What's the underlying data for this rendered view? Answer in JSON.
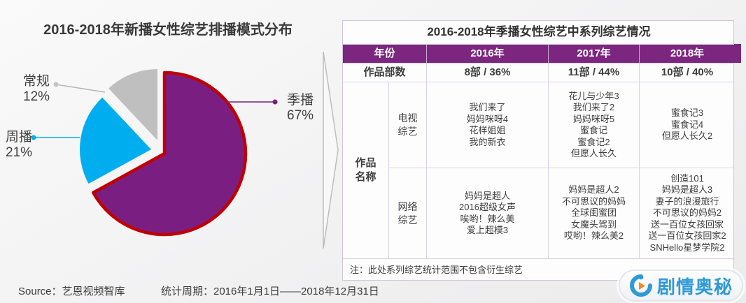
{
  "colors": {
    "pie_purple": "#7b1e82",
    "pie_purple_border": "#c00000",
    "pie_blue": "#00aeef",
    "pie_gray": "#bfbfbf",
    "table_header_purple": "#7c2680",
    "watermark_blue": "#2f9ad6",
    "watermark_orange": "#f08c1e"
  },
  "chart_data": [
    {
      "type": "pie",
      "title": "2016-2018年新播女性综艺排播模式分布",
      "start_angle": "top",
      "direction": "clockwise",
      "legend_position": "callout-labels",
      "slices": [
        {
          "label": "季播",
          "pct": 67,
          "pct_text": "67%",
          "color": "#7b1e82",
          "border_color": "#c00000"
        },
        {
          "label": "周播",
          "pct": 21,
          "pct_text": "21%",
          "color": "#00aeef"
        },
        {
          "label": "常规",
          "pct": 12,
          "pct_text": "12%",
          "color": "#bfbfbf"
        }
      ]
    },
    {
      "type": "table",
      "title": "2016-2018年季播女性综艺中系列综艺情况",
      "header_row": {
        "label": "年份",
        "years": [
          "2016年",
          "2017年",
          "2018年"
        ]
      },
      "counts_row": {
        "label": "作品部数",
        "values": [
          "8部 / 36%",
          "11部 / 44%",
          "10部 / 40%"
        ]
      },
      "names_row_label": "作品名称",
      "groups": [
        {
          "label": "电视综艺",
          "cells": [
            [
              "我们来了",
              "妈妈咪呀4",
              "花样姐姐",
              "我的新衣"
            ],
            [
              "花儿与少年3",
              "我们来了2",
              "妈妈咪呀5",
              "蜜食记",
              "蜜食记2",
              "但愿人长久"
            ],
            [
              "蜜食记3",
              "蜜食记4",
              "但愿人长久2"
            ]
          ]
        },
        {
          "label": "网络综艺",
          "cells": [
            [
              "妈妈是超人",
              "2016超级女声",
              "唉哟！辣么美",
              "爱上超模3"
            ],
            [
              "妈妈是超人2",
              "不可思议的妈妈",
              "全球闺蜜团",
              "女魔头驾到",
              "哎哟！辣么美2"
            ],
            [
              "创造101",
              "妈妈是超人3",
              "妻子的浪漫旅行",
              "不可思议的妈妈2",
              "送一百位女孩回家",
              "送一百位女孩回家2",
              "SNHello星梦学院2"
            ]
          ]
        }
      ],
      "note": "注：此处系列综艺统计范围不包含衍生综艺"
    }
  ],
  "footer": {
    "source": "Source：艺恩视频智库",
    "period": "统计周期：2016年1月1日——2018年12月31日"
  },
  "watermark": {
    "text": "剧情奥秘"
  }
}
